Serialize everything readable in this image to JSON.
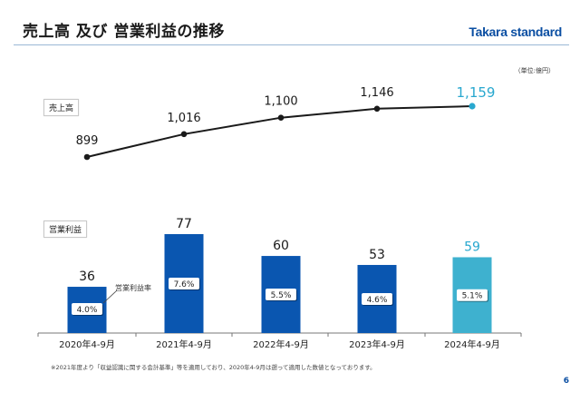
{
  "header": {
    "title": "売上高 及び 営業利益の推移",
    "brand": "Takara standard",
    "unit": "（単位:億円）"
  },
  "footer": {
    "note": "※2021年度より「収益認識に関する会計基準」等を適用しており、2020年4-9月は遡って適用した数値となっております。",
    "page_number": "6"
  },
  "colors": {
    "bar_past": "#0a56b0",
    "bar_current": "#3eb1cf",
    "highlight": "#29a8cf",
    "line": "#1a1a1a"
  },
  "chart_data": [
    {
      "type": "line",
      "title": "売上高",
      "categories": [
        "2020年4-9月",
        "2021年4-9月",
        "2022年4-9月",
        "2023年4-9月",
        "2024年4-9月"
      ],
      "values": [
        899,
        1016,
        1100,
        1146,
        1159
      ],
      "labels": [
        "899",
        "1,016",
        "1,100",
        "1,146",
        "1,159"
      ],
      "highlight_index": 4
    },
    {
      "type": "bar",
      "title": "営業利益",
      "categories": [
        "2020年4-9月",
        "2021年4-9月",
        "2022年4-9月",
        "2023年4-9月",
        "2024年4-9月"
      ],
      "values": [
        36,
        77,
        60,
        53,
        59
      ],
      "labels": [
        "36",
        "77",
        "60",
        "53",
        "59"
      ],
      "margin_label": "営業利益率",
      "margins": [
        "4.0%",
        "7.6%",
        "5.5%",
        "4.6%",
        "5.1%"
      ],
      "highlight_index": 4
    }
  ]
}
